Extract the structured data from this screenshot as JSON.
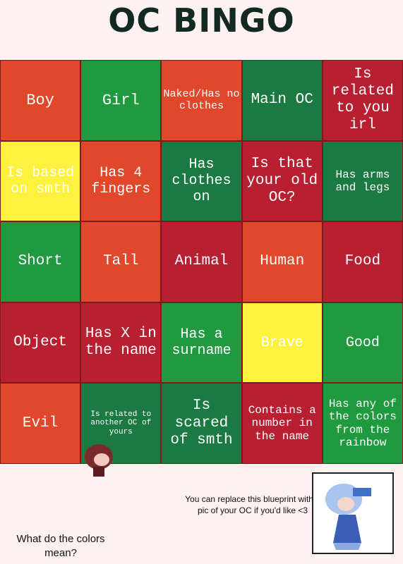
{
  "title": "OC BINGO",
  "grid": {
    "rows": [
      [
        "Boy",
        "Girl",
        "Naked/Has no clothes",
        "Main OC",
        "Is related to you irl"
      ],
      [
        "Is based on smth",
        "Has 4 fingers",
        "Has clothes on",
        "Is that your old OC?",
        "Has arms and legs"
      ],
      [
        "Short",
        "Tall",
        "Animal",
        "Human",
        "Food"
      ],
      [
        "Object",
        "Has X in the name",
        "Has a surname",
        "Brave",
        "Good"
      ],
      [
        "Evil",
        "Is related to another OC of yours",
        "Is scared of smth",
        "Contains a number in the name",
        "Has any of the colors from the rainbow"
      ]
    ]
  },
  "note": "You can replace this blueprint with a pic of your OC if you'd like <3",
  "question": "What do the colors mean?"
}
